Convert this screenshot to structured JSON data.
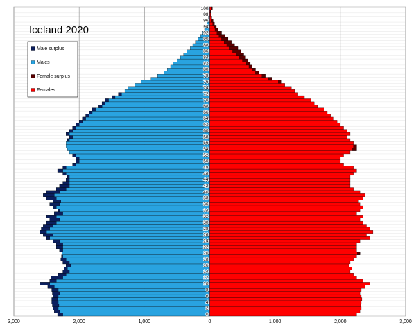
{
  "chart_data": {
    "type": "pyramid",
    "title": "Iceland 2020",
    "categories": [
      "0",
      null,
      "2",
      null,
      "4",
      null,
      "6",
      null,
      "8",
      null,
      "10",
      null,
      "12",
      null,
      "14",
      null,
      "16",
      null,
      "18",
      null,
      "20",
      null,
      "22",
      null,
      "24",
      null,
      "26",
      null,
      "28",
      null,
      "30",
      null,
      "32",
      null,
      "34",
      null,
      "36",
      null,
      "38",
      null,
      "40",
      null,
      "42",
      null,
      "44",
      null,
      "46",
      null,
      "48",
      null,
      "50",
      null,
      "52",
      null,
      "54",
      null,
      "56",
      null,
      "58",
      null,
      "60",
      null,
      "62",
      null,
      "64",
      null,
      "66",
      null,
      "68",
      null,
      "70",
      null,
      "72",
      null,
      "74",
      null,
      "76",
      null,
      "78",
      null,
      "80",
      null,
      "82",
      null,
      "84",
      null,
      "86",
      null,
      "88",
      null,
      "90",
      null,
      "92",
      null,
      "94",
      null,
      "96",
      null,
      "98",
      null,
      "100"
    ],
    "series": [
      {
        "name": "Males",
        "color": "#29a3e0",
        "surplus_name": "Male surplus",
        "surplus_color": "#0b1f5e",
        "side": "left",
        "values": [
          2330,
          2380,
          2400,
          2410,
          2420,
          2420,
          2400,
          2410,
          2420,
          2480,
          2600,
          2450,
          2430,
          2320,
          2250,
          2230,
          2200,
          2250,
          2280,
          2270,
          2260,
          2300,
          2350,
          2350,
          2400,
          2500,
          2550,
          2600,
          2580,
          2550,
          2500,
          2450,
          2500,
          2380,
          2320,
          2400,
          2450,
          2400,
          2500,
          2550,
          2500,
          2350,
          2300,
          2250,
          2200,
          2180,
          2250,
          2330,
          2250,
          2100,
          2050,
          2050,
          2100,
          2150,
          2180,
          2200,
          2200,
          2180,
          2150,
          2200,
          2150,
          2100,
          2050,
          2000,
          1950,
          1900,
          1850,
          1800,
          1700,
          1650,
          1600,
          1500,
          1400,
          1300,
          1250,
          1150,
          1050,
          900,
          800,
          700,
          650,
          600,
          560,
          500,
          450,
          400,
          350,
          300,
          260,
          220,
          180,
          140,
          110,
          80,
          60,
          45,
          30,
          20,
          12,
          8,
          30
        ]
      },
      {
        "name": "Females",
        "color": "#ff0000",
        "surplus_name": "Female surplus",
        "surplus_color": "#5a0000",
        "side": "right",
        "values": [
          2250,
          2300,
          2320,
          2310,
          2320,
          2330,
          2320,
          2300,
          2320,
          2380,
          2450,
          2350,
          2250,
          2200,
          2150,
          2180,
          2130,
          2150,
          2200,
          2250,
          2300,
          2250,
          2250,
          2250,
          2300,
          2450,
          2400,
          2500,
          2450,
          2400,
          2350,
          2300,
          2350,
          2250,
          2300,
          2350,
          2300,
          2280,
          2350,
          2380,
          2300,
          2200,
          2150,
          2150,
          2150,
          2150,
          2200,
          2250,
          2200,
          2050,
          2000,
          2000,
          2050,
          2150,
          2250,
          2250,
          2200,
          2150,
          2100,
          2150,
          2100,
          2050,
          2000,
          1950,
          1900,
          1850,
          1800,
          1750,
          1650,
          1600,
          1550,
          1450,
          1350,
          1300,
          1250,
          1150,
          1100,
          950,
          850,
          750,
          700,
          650,
          620,
          580,
          550,
          520,
          480,
          430,
          380,
          330,
          280,
          230,
          180,
          130,
          100,
          70,
          50,
          30,
          20,
          12,
          40
        ]
      }
    ],
    "xlim": [
      -3000,
      3000
    ],
    "xticks": [
      {
        "value": -3000,
        "label": "3,000"
      },
      {
        "value": -2000,
        "label": "2,000"
      },
      {
        "value": -1000,
        "label": "1,000"
      },
      0,
      {
        "value": 1000,
        "label": "1,000"
      },
      {
        "value": 2000,
        "label": "2,000"
      },
      {
        "value": 3000,
        "label": "3,000"
      }
    ],
    "grid": true
  }
}
